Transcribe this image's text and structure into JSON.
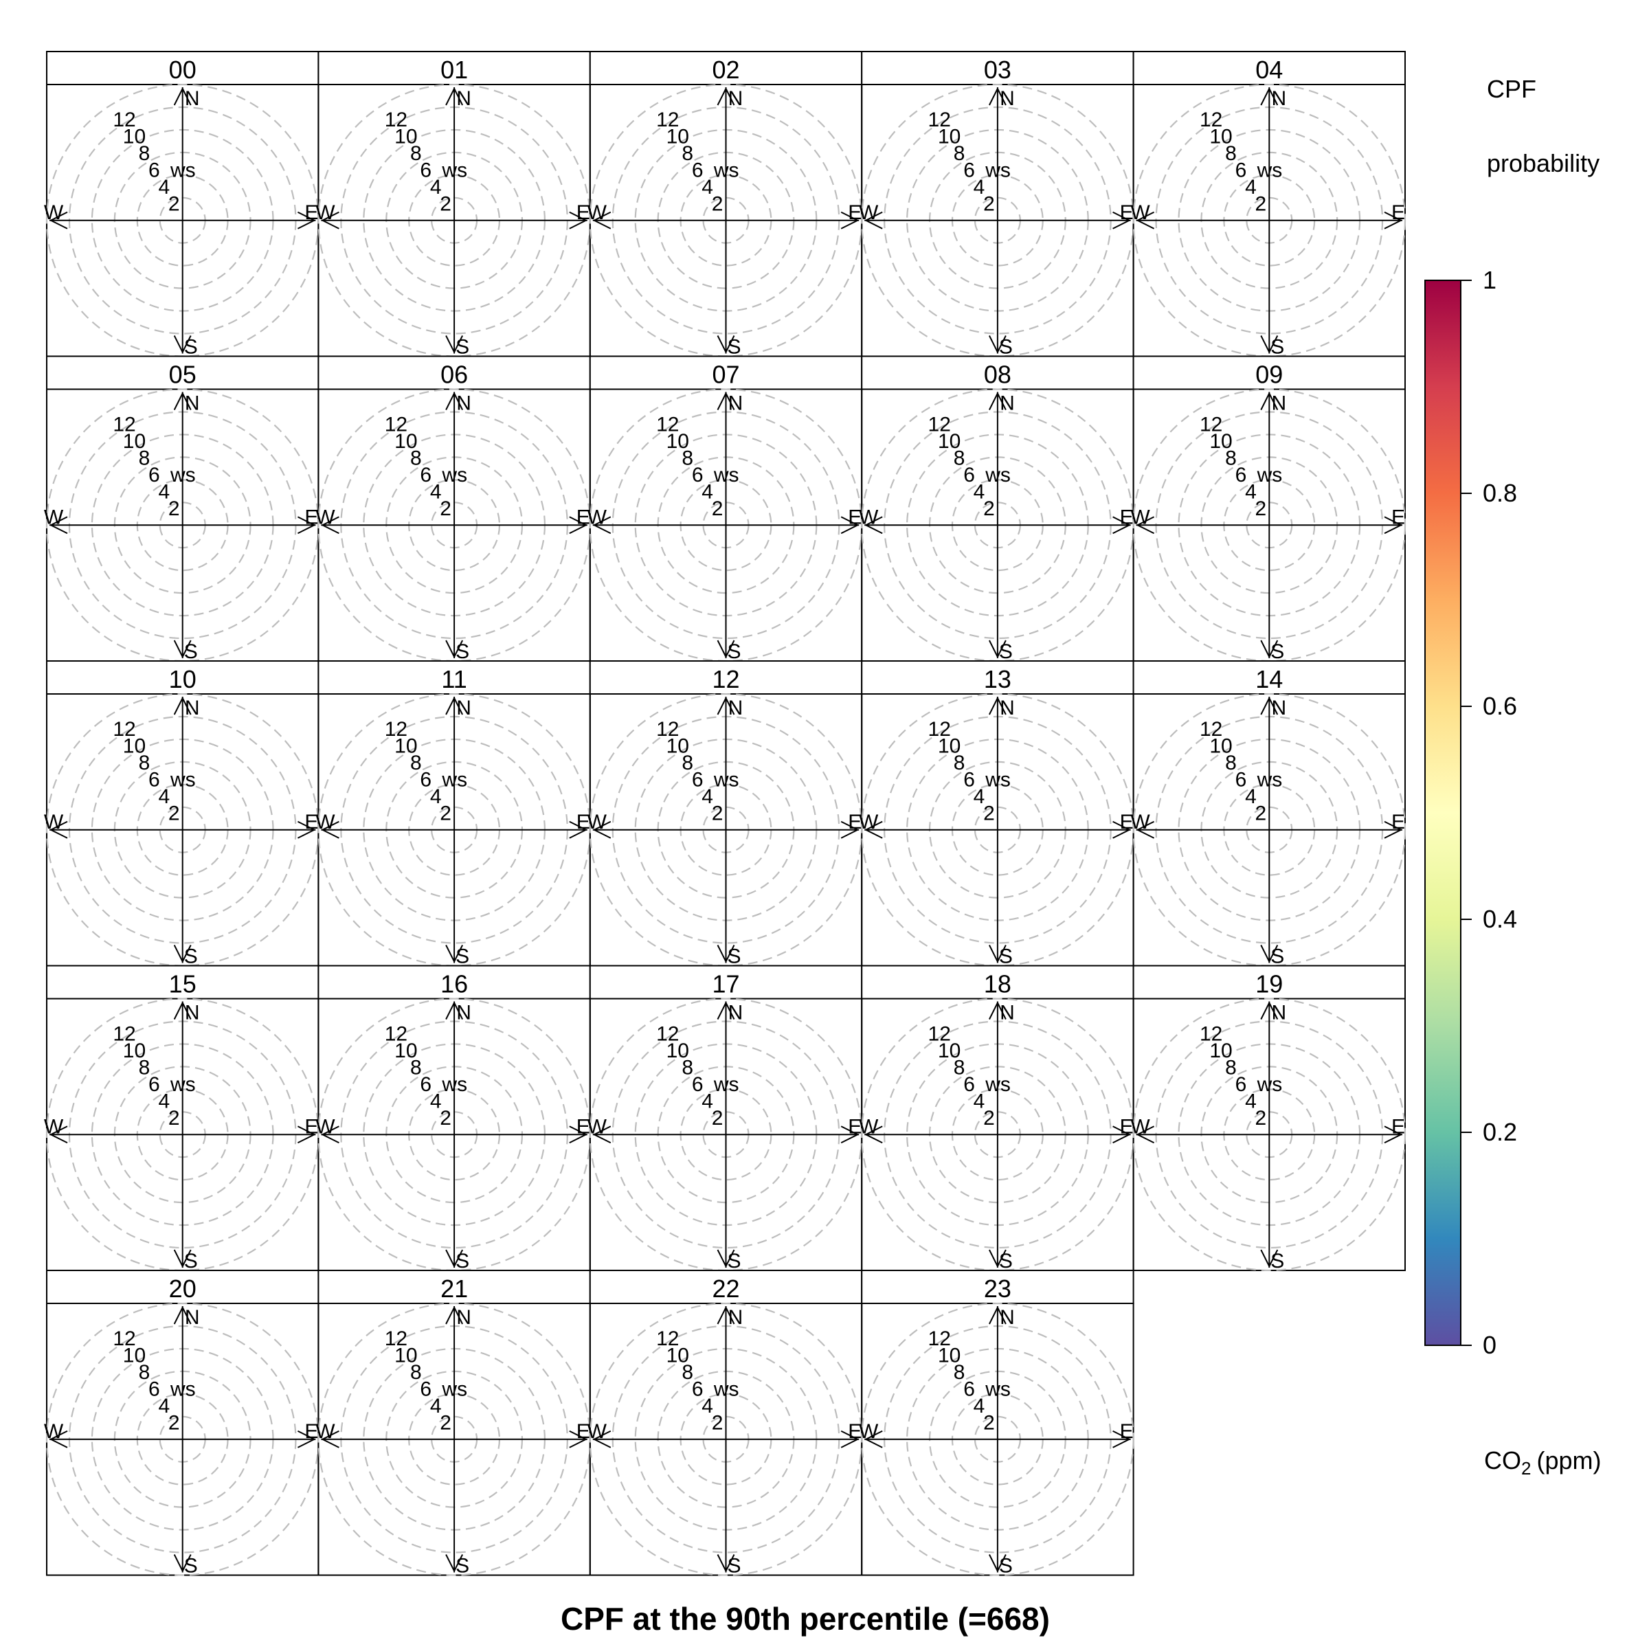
{
  "chart_data": {
    "type": "polar",
    "title": "CPF at the 90th percentile (=668)",
    "panels": [
      "00",
      "01",
      "02",
      "03",
      "04",
      "05",
      "06",
      "07",
      "08",
      "09",
      "10",
      "11",
      "12",
      "13",
      "14",
      "15",
      "16",
      "17",
      "18",
      "19",
      "20",
      "21",
      "22",
      "23"
    ],
    "radial_ticks": [
      2,
      4,
      6,
      8,
      10,
      12
    ],
    "radial_axis_label": "ws",
    "compass_labels": [
      "N",
      "E",
      "S",
      "W"
    ],
    "colorbar": {
      "title_line1": "CPF",
      "title_line2": "probability",
      "ticks": [
        "0",
        "0.2",
        "0.4",
        "0.6",
        "0.8",
        "1"
      ],
      "range": [
        0,
        1
      ],
      "palette": [
        "#5E4FA2",
        "#3288BD",
        "#66C2A5",
        "#ABDDA4",
        "#E6F598",
        "#FFFFBF",
        "#FEE08B",
        "#FDAE61",
        "#F46D43",
        "#D53E4F",
        "#9E0142"
      ],
      "pollutant_label": "CO",
      "pollutant_subscript": "2",
      "units": "(ppm)"
    },
    "grid": true
  }
}
